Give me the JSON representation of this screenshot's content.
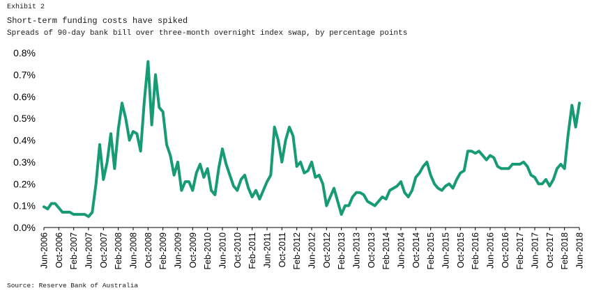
{
  "header": {
    "exhibit": "Exhibit 2",
    "title": "Short-term funding costs have spiked",
    "subtitle": "Spreads of 90-day bank bill over three-month overnight index swap, by percentage points"
  },
  "footer": {
    "source": "Source: Reserve Bank of Australia"
  },
  "chart_data": {
    "type": "line",
    "title": "Short-term funding costs have spiked",
    "xlabel": "",
    "ylabel": "",
    "ylim": [
      0,
      0.8
    ],
    "yticks": [
      0,
      0.1,
      0.2,
      0.3,
      0.4,
      0.5,
      0.6,
      0.7,
      0.8
    ],
    "ytick_labels": [
      "0.0%",
      "0.1%",
      "0.2%",
      "0.3%",
      "0.4%",
      "0.5%",
      "0.6%",
      "0.7%",
      "0.8%"
    ],
    "xtick_labels": [
      "Jun-2006",
      "Oct-2006",
      "Feb-2007",
      "Jun-2007",
      "Oct-2007",
      "Feb-2008",
      "Jun-2008",
      "Oct-2008",
      "Feb-2009",
      "Jun-2009",
      "Oct-2009",
      "Feb-2010",
      "Jun-2010",
      "Oct-2010",
      "Feb-2011",
      "Jun-2011",
      "Oct-2011",
      "Feb-2012",
      "Jun-2012",
      "Oct-2012",
      "Feb-2013",
      "Jun-2013",
      "Oct-2013",
      "Feb-2014",
      "Jun-2014",
      "Oct-2014",
      "Feb-2015",
      "Jun-2015",
      "Oct-2015",
      "Feb-2016",
      "Jun-2016",
      "Oct-2016",
      "Feb-2017",
      "Jun-2017",
      "Oct-2017",
      "Feb-2018",
      "Jun-2018"
    ],
    "grid": false,
    "legend": "none",
    "line_color": "#169b74",
    "series": [
      {
        "name": "90-day bank bill minus 3-month OIS spread",
        "start": "Jun-2006",
        "frequency": "monthly",
        "values": [
          0.095,
          0.085,
          0.11,
          0.11,
          0.09,
          0.07,
          0.07,
          0.07,
          0.06,
          0.06,
          0.06,
          0.06,
          0.05,
          0.07,
          0.2,
          0.38,
          0.22,
          0.3,
          0.43,
          0.27,
          0.45,
          0.57,
          0.5,
          0.4,
          0.44,
          0.43,
          0.35,
          0.58,
          0.76,
          0.47,
          0.7,
          0.55,
          0.53,
          0.38,
          0.33,
          0.24,
          0.3,
          0.17,
          0.21,
          0.21,
          0.17,
          0.25,
          0.29,
          0.23,
          0.27,
          0.17,
          0.15,
          0.27,
          0.36,
          0.29,
          0.24,
          0.19,
          0.17,
          0.22,
          0.24,
          0.18,
          0.14,
          0.17,
          0.13,
          0.17,
          0.21,
          0.24,
          0.46,
          0.4,
          0.3,
          0.4,
          0.46,
          0.42,
          0.28,
          0.3,
          0.25,
          0.26,
          0.3,
          0.23,
          0.24,
          0.2,
          0.1,
          0.14,
          0.18,
          0.12,
          0.06,
          0.1,
          0.1,
          0.14,
          0.16,
          0.16,
          0.15,
          0.12,
          0.11,
          0.1,
          0.12,
          0.14,
          0.13,
          0.17,
          0.18,
          0.19,
          0.21,
          0.16,
          0.14,
          0.17,
          0.23,
          0.25,
          0.28,
          0.3,
          0.24,
          0.2,
          0.18,
          0.17,
          0.19,
          0.2,
          0.18,
          0.22,
          0.25,
          0.26,
          0.35,
          0.35,
          0.34,
          0.35,
          0.33,
          0.31,
          0.33,
          0.32,
          0.28,
          0.27,
          0.27,
          0.27,
          0.29,
          0.29,
          0.29,
          0.3,
          0.28,
          0.24,
          0.23,
          0.2,
          0.2,
          0.22,
          0.19,
          0.22,
          0.27,
          0.29,
          0.27,
          0.43,
          0.56,
          0.46,
          0.57
        ]
      }
    ]
  }
}
